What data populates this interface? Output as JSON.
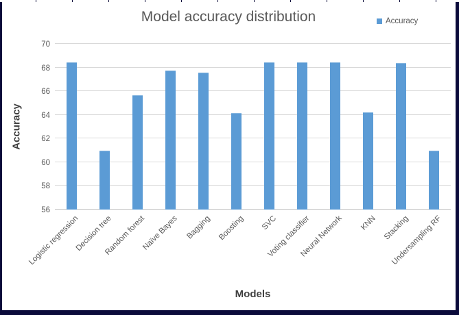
{
  "frame": {
    "border_color": "#0b0b3b",
    "canvas_color": "#ffffff"
  },
  "chart_data": {
    "type": "bar",
    "title": "Model accuracy distribution",
    "xlabel": "Models",
    "ylabel": "Accuracy",
    "legend_label": "Accuracy",
    "legend_position": "top-right",
    "categories": [
      "Logistic regression",
      "Decision tree",
      "Random forest",
      "Naïve Bayes",
      "Bagging",
      "Boosting",
      "SVC",
      "Voting classifier",
      "Neural Network",
      "KNN",
      "Stacking",
      "Undersampling RF"
    ],
    "values": [
      68.4,
      60.9,
      65.6,
      67.7,
      67.5,
      64.1,
      68.4,
      68.4,
      68.4,
      64.15,
      68.3,
      60.9
    ],
    "ylim": [
      56,
      70
    ],
    "yticks": [
      56,
      58,
      60,
      62,
      64,
      66,
      68,
      70
    ],
    "grid": true,
    "bar_color": "#5B9BD5",
    "gridline_color": "#D9D9D9",
    "axis_line_color": "#BFBFBF",
    "text_color": "#595959",
    "axis_title_color": "#3f3f3f"
  }
}
